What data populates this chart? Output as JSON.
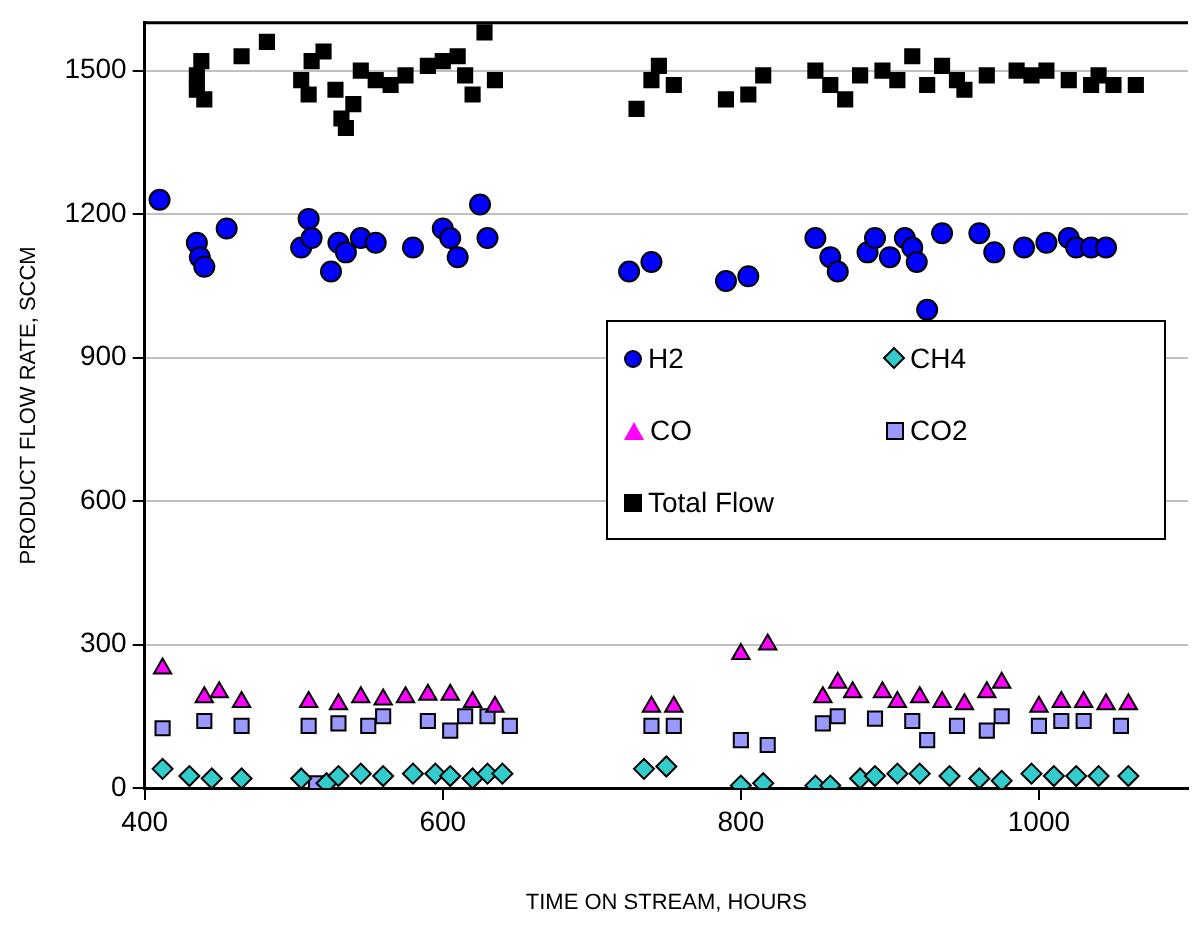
{
  "chart_data": {
    "type": "scatter",
    "xlabel": "TIME ON STREAM, HOURS",
    "ylabel": "PRODUCT FLOW RATE, SCCM",
    "xlim": [
      400,
      1100
    ],
    "xticks": [
      400,
      600,
      800,
      1000
    ],
    "ylim": [
      0,
      1600
    ],
    "yticks": [
      0,
      300,
      600,
      900,
      1200,
      1500
    ],
    "grid": "y",
    "legend": "right",
    "series": [
      {
        "name": "H2",
        "color": "#0000ff",
        "marker": "circle",
        "x": [
          410,
          435,
          437,
          440,
          455,
          505,
          510,
          512,
          525,
          530,
          535,
          545,
          555,
          580,
          600,
          605,
          610,
          625,
          630,
          725,
          740,
          790,
          805,
          850,
          860,
          865,
          885,
          890,
          900,
          910,
          915,
          918,
          925,
          935,
          960,
          970,
          990,
          1005,
          1020,
          1025,
          1035,
          1045
        ],
        "values": [
          1230,
          1140,
          1110,
          1090,
          1170,
          1130,
          1190,
          1150,
          1080,
          1140,
          1120,
          1150,
          1140,
          1130,
          1170,
          1150,
          1110,
          1220,
          1150,
          1080,
          1100,
          1060,
          1070,
          1150,
          1110,
          1080,
          1120,
          1150,
          1110,
          1150,
          1130,
          1100,
          1000,
          1160,
          1160,
          1120,
          1130,
          1140,
          1150,
          1130,
          1130,
          1130
        ]
      },
      {
        "name": "CH4",
        "color": "#33cccc",
        "marker": "diamond",
        "x": [
          412,
          430,
          445,
          465,
          505,
          522,
          530,
          545,
          560,
          580,
          595,
          605,
          620,
          630,
          640,
          735,
          750,
          800,
          815,
          850,
          860,
          880,
          890,
          905,
          920,
          940,
          960,
          975,
          995,
          1010,
          1025,
          1040,
          1060
        ],
        "values": [
          40,
          25,
          20,
          20,
          20,
          10,
          25,
          30,
          25,
          30,
          30,
          25,
          20,
          30,
          30,
          40,
          45,
          5,
          10,
          5,
          5,
          20,
          25,
          30,
          30,
          25,
          20,
          15,
          30,
          25,
          25,
          25,
          25
        ]
      },
      {
        "name": "CO",
        "color": "#ff00ff",
        "marker": "triangle",
        "x": [
          412,
          440,
          450,
          465,
          510,
          530,
          545,
          560,
          575,
          590,
          605,
          620,
          635,
          740,
          755,
          800,
          818,
          855,
          865,
          875,
          895,
          905,
          920,
          935,
          950,
          965,
          975,
          1000,
          1015,
          1030,
          1045,
          1060
        ],
        "values": [
          250,
          190,
          200,
          180,
          180,
          175,
          190,
          185,
          190,
          195,
          195,
          180,
          170,
          170,
          170,
          280,
          300,
          190,
          220,
          200,
          200,
          180,
          190,
          180,
          175,
          200,
          220,
          170,
          180,
          180,
          175,
          175
        ]
      },
      {
        "name": "CO2",
        "color": "#9999ff",
        "marker": "square",
        "x": [
          412,
          440,
          465,
          510,
          515,
          530,
          550,
          560,
          590,
          605,
          615,
          630,
          645,
          740,
          755,
          800,
          818,
          855,
          865,
          890,
          915,
          925,
          945,
          965,
          975,
          1000,
          1015,
          1030,
          1055
        ],
        "values": [
          125,
          140,
          130,
          130,
          10,
          135,
          130,
          150,
          140,
          120,
          150,
          150,
          130,
          130,
          130,
          100,
          90,
          135,
          150,
          145,
          140,
          100,
          130,
          120,
          150,
          130,
          140,
          140,
          130
        ]
      },
      {
        "name": "Total Flow",
        "color": "#000000",
        "marker": "square",
        "x": [
          435,
          435,
          438,
          440,
          465,
          482,
          505,
          510,
          512,
          520,
          528,
          532,
          535,
          540,
          545,
          555,
          565,
          575,
          590,
          600,
          610,
          615,
          620,
          628,
          635,
          730,
          740,
          745,
          755,
          790,
          805,
          815,
          850,
          860,
          870,
          880,
          895,
          905,
          915,
          925,
          935,
          945,
          950,
          965,
          985,
          995,
          1005,
          1020,
          1035,
          1040,
          1050,
          1065
        ],
        "values": [
          1490,
          1460,
          1520,
          1440,
          1530,
          1560,
          1480,
          1450,
          1520,
          1540,
          1460,
          1400,
          1380,
          1430,
          1500,
          1480,
          1470,
          1490,
          1510,
          1520,
          1530,
          1490,
          1450,
          1580,
          1480,
          1420,
          1480,
          1510,
          1470,
          1440,
          1450,
          1490,
          1500,
          1470,
          1440,
          1490,
          1500,
          1480,
          1530,
          1470,
          1510,
          1480,
          1460,
          1490,
          1500,
          1490,
          1500,
          1480,
          1470,
          1490,
          1470,
          1470
        ]
      }
    ]
  }
}
